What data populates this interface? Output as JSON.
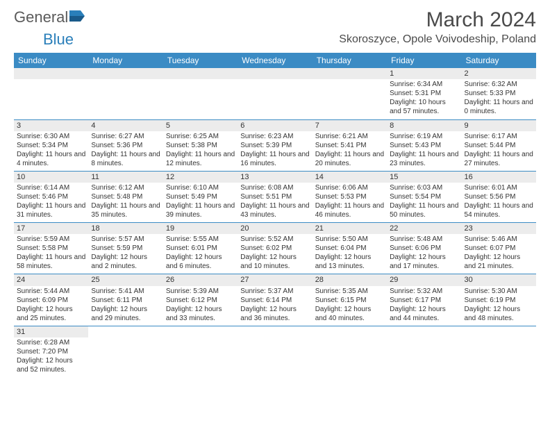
{
  "logo": {
    "part1": "General",
    "part2": "Blue"
  },
  "title": "March 2024",
  "location": "Skoroszyce, Opole Voivodeship, Poland",
  "colors": {
    "header_bg": "#3b8bc4",
    "header_text": "#ffffff",
    "daynum_bg": "#ececec",
    "border": "#3b8bc4",
    "logo_gray": "#5a5a5a",
    "logo_blue": "#2a7fba",
    "text": "#333333"
  },
  "day_headers": [
    "Sunday",
    "Monday",
    "Tuesday",
    "Wednesday",
    "Thursday",
    "Friday",
    "Saturday"
  ],
  "weeks": [
    [
      null,
      null,
      null,
      null,
      null,
      {
        "n": "1",
        "sr": "6:34 AM",
        "ss": "5:31 PM",
        "dl": "10 hours and 57 minutes."
      },
      {
        "n": "2",
        "sr": "6:32 AM",
        "ss": "5:33 PM",
        "dl": "11 hours and 0 minutes."
      }
    ],
    [
      {
        "n": "3",
        "sr": "6:30 AM",
        "ss": "5:34 PM",
        "dl": "11 hours and 4 minutes."
      },
      {
        "n": "4",
        "sr": "6:27 AM",
        "ss": "5:36 PM",
        "dl": "11 hours and 8 minutes."
      },
      {
        "n": "5",
        "sr": "6:25 AM",
        "ss": "5:38 PM",
        "dl": "11 hours and 12 minutes."
      },
      {
        "n": "6",
        "sr": "6:23 AM",
        "ss": "5:39 PM",
        "dl": "11 hours and 16 minutes."
      },
      {
        "n": "7",
        "sr": "6:21 AM",
        "ss": "5:41 PM",
        "dl": "11 hours and 20 minutes."
      },
      {
        "n": "8",
        "sr": "6:19 AM",
        "ss": "5:43 PM",
        "dl": "11 hours and 23 minutes."
      },
      {
        "n": "9",
        "sr": "6:17 AM",
        "ss": "5:44 PM",
        "dl": "11 hours and 27 minutes."
      }
    ],
    [
      {
        "n": "10",
        "sr": "6:14 AM",
        "ss": "5:46 PM",
        "dl": "11 hours and 31 minutes."
      },
      {
        "n": "11",
        "sr": "6:12 AM",
        "ss": "5:48 PM",
        "dl": "11 hours and 35 minutes."
      },
      {
        "n": "12",
        "sr": "6:10 AM",
        "ss": "5:49 PM",
        "dl": "11 hours and 39 minutes."
      },
      {
        "n": "13",
        "sr": "6:08 AM",
        "ss": "5:51 PM",
        "dl": "11 hours and 43 minutes."
      },
      {
        "n": "14",
        "sr": "6:06 AM",
        "ss": "5:53 PM",
        "dl": "11 hours and 46 minutes."
      },
      {
        "n": "15",
        "sr": "6:03 AM",
        "ss": "5:54 PM",
        "dl": "11 hours and 50 minutes."
      },
      {
        "n": "16",
        "sr": "6:01 AM",
        "ss": "5:56 PM",
        "dl": "11 hours and 54 minutes."
      }
    ],
    [
      {
        "n": "17",
        "sr": "5:59 AM",
        "ss": "5:58 PM",
        "dl": "11 hours and 58 minutes."
      },
      {
        "n": "18",
        "sr": "5:57 AM",
        "ss": "5:59 PM",
        "dl": "12 hours and 2 minutes."
      },
      {
        "n": "19",
        "sr": "5:55 AM",
        "ss": "6:01 PM",
        "dl": "12 hours and 6 minutes."
      },
      {
        "n": "20",
        "sr": "5:52 AM",
        "ss": "6:02 PM",
        "dl": "12 hours and 10 minutes."
      },
      {
        "n": "21",
        "sr": "5:50 AM",
        "ss": "6:04 PM",
        "dl": "12 hours and 13 minutes."
      },
      {
        "n": "22",
        "sr": "5:48 AM",
        "ss": "6:06 PM",
        "dl": "12 hours and 17 minutes."
      },
      {
        "n": "23",
        "sr": "5:46 AM",
        "ss": "6:07 PM",
        "dl": "12 hours and 21 minutes."
      }
    ],
    [
      {
        "n": "24",
        "sr": "5:44 AM",
        "ss": "6:09 PM",
        "dl": "12 hours and 25 minutes."
      },
      {
        "n": "25",
        "sr": "5:41 AM",
        "ss": "6:11 PM",
        "dl": "12 hours and 29 minutes."
      },
      {
        "n": "26",
        "sr": "5:39 AM",
        "ss": "6:12 PM",
        "dl": "12 hours and 33 minutes."
      },
      {
        "n": "27",
        "sr": "5:37 AM",
        "ss": "6:14 PM",
        "dl": "12 hours and 36 minutes."
      },
      {
        "n": "28",
        "sr": "5:35 AM",
        "ss": "6:15 PM",
        "dl": "12 hours and 40 minutes."
      },
      {
        "n": "29",
        "sr": "5:32 AM",
        "ss": "6:17 PM",
        "dl": "12 hours and 44 minutes."
      },
      {
        "n": "30",
        "sr": "5:30 AM",
        "ss": "6:19 PM",
        "dl": "12 hours and 48 minutes."
      }
    ],
    [
      {
        "n": "31",
        "sr": "6:28 AM",
        "ss": "7:20 PM",
        "dl": "12 hours and 52 minutes."
      },
      null,
      null,
      null,
      null,
      null,
      null
    ]
  ],
  "labels": {
    "sunrise": "Sunrise:",
    "sunset": "Sunset:",
    "daylight": "Daylight:"
  }
}
